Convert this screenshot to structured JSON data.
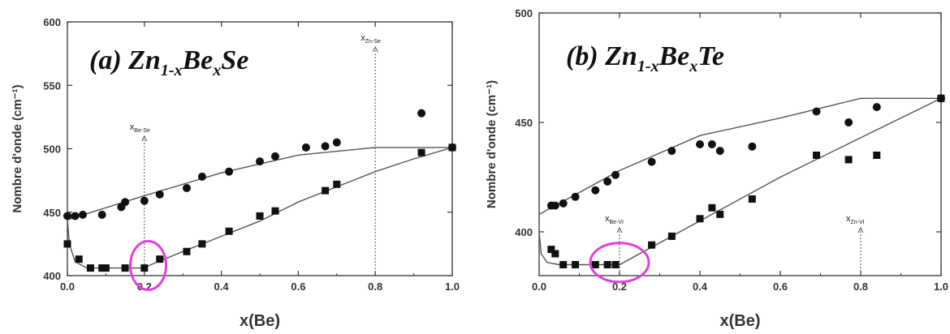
{
  "chart_data": [
    {
      "type": "scatter",
      "title": "(a) Zn",
      "title_sub1": "1-x",
      "title_mid": "Be",
      "title_sub2": "x",
      "title_end": "Se",
      "xlabel": "x(Be)",
      "ylabel": "Nombre d'onde (cm⁻¹)",
      "xlim": [
        0,
        1
      ],
      "ylim": [
        400,
        600
      ],
      "xticks": [
        "0.0",
        "0.2",
        "0.4",
        "0.6",
        "0.8",
        "1.0"
      ],
      "yticks": [
        "400",
        "450",
        "500",
        "550",
        "600"
      ],
      "series": [
        {
          "marker": "circle",
          "points": [
            [
              0.0,
              447
            ],
            [
              0.02,
              447
            ],
            [
              0.04,
              448
            ],
            [
              0.09,
              448
            ],
            [
              0.14,
              454
            ],
            [
              0.15,
              458
            ],
            [
              0.2,
              459
            ],
            [
              0.24,
              464
            ],
            [
              0.31,
              469
            ],
            [
              0.35,
              478
            ],
            [
              0.42,
              482
            ],
            [
              0.5,
              490
            ],
            [
              0.54,
              494
            ],
            [
              0.62,
              501
            ],
            [
              0.67,
              502
            ],
            [
              0.7,
              505
            ],
            [
              0.92,
              528
            ],
            [
              1.0,
              501
            ]
          ]
        },
        {
          "marker": "square",
          "points": [
            [
              0.0,
              425
            ],
            [
              0.03,
              413
            ],
            [
              0.06,
              406
            ],
            [
              0.09,
              406
            ],
            [
              0.1,
              406
            ],
            [
              0.15,
              406
            ],
            [
              0.2,
              406
            ],
            [
              0.24,
              413
            ],
            [
              0.31,
              419
            ],
            [
              0.35,
              425
            ],
            [
              0.42,
              435
            ],
            [
              0.5,
              447
            ],
            [
              0.54,
              451
            ],
            [
              0.67,
              467
            ],
            [
              0.7,
              472
            ],
            [
              0.92,
              497
            ],
            [
              1.0,
              501
            ]
          ]
        }
      ],
      "fit_lines": [
        [
          [
            0.0,
            444
          ],
          [
            0.2,
            463
          ],
          [
            0.4,
            481
          ],
          [
            0.6,
            495
          ],
          [
            0.8,
            501
          ],
          [
            1.0,
            501
          ]
        ],
        [
          [
            0.0,
            445
          ],
          [
            0.005,
            425
          ],
          [
            0.02,
            411
          ],
          [
            0.05,
            406
          ],
          [
            0.2,
            406
          ],
          [
            0.22,
            409
          ],
          [
            0.3,
            419
          ],
          [
            0.4,
            431
          ],
          [
            0.5,
            443
          ],
          [
            0.6,
            458
          ],
          [
            0.7,
            470
          ],
          [
            0.8,
            482
          ],
          [
            0.9,
            492
          ],
          [
            1.0,
            501
          ]
        ]
      ],
      "annotations": [
        {
          "label": "x",
          "sub": "Be-Se",
          "x": 0.2
        },
        {
          "label": "x",
          "sub": "Zn-Se",
          "x": 0.8
        }
      ],
      "highlight": {
        "x": 0.21,
        "y": 408,
        "color": "#e040e0"
      }
    },
    {
      "type": "scatter",
      "title": "(b) Zn",
      "title_sub1": "1-x",
      "title_mid": "Be",
      "title_sub2": "x",
      "title_end": "Te",
      "xlabel": "x(Be)",
      "ylabel": "Nombre d'onde (cm⁻¹)",
      "xlim": [
        0,
        1
      ],
      "ylim": [
        380,
        500
      ],
      "xticks": [
        "0.0",
        "0.2",
        "0.4",
        "0.6",
        "0.8",
        "1.0"
      ],
      "yticks": [
        "400",
        "450",
        "500"
      ],
      "series": [
        {
          "marker": "circle",
          "points": [
            [
              0.03,
              412
            ],
            [
              0.04,
              412
            ],
            [
              0.06,
              413
            ],
            [
              0.09,
              416
            ],
            [
              0.14,
              419
            ],
            [
              0.17,
              423
            ],
            [
              0.19,
              426
            ],
            [
              0.28,
              432
            ],
            [
              0.33,
              437
            ],
            [
              0.4,
              440
            ],
            [
              0.43,
              440
            ],
            [
              0.45,
              437
            ],
            [
              0.53,
              439
            ],
            [
              0.69,
              455
            ],
            [
              0.77,
              450
            ],
            [
              0.84,
              457
            ],
            [
              1.0,
              461
            ]
          ]
        },
        {
          "marker": "square",
          "points": [
            [
              0.03,
              392
            ],
            [
              0.04,
              390
            ],
            [
              0.06,
              385
            ],
            [
              0.09,
              385
            ],
            [
              0.14,
              385
            ],
            [
              0.17,
              385
            ],
            [
              0.19,
              385
            ],
            [
              0.28,
              394
            ],
            [
              0.33,
              398
            ],
            [
              0.4,
              406
            ],
            [
              0.43,
              411
            ],
            [
              0.45,
              408
            ],
            [
              0.53,
              415
            ],
            [
              0.69,
              435
            ],
            [
              0.77,
              433
            ],
            [
              0.84,
              435
            ],
            [
              1.0,
              461
            ]
          ]
        }
      ],
      "fit_lines": [
        [
          [
            0.0,
            408
          ],
          [
            0.2,
            428
          ],
          [
            0.4,
            444
          ],
          [
            0.6,
            452
          ],
          [
            0.8,
            461
          ],
          [
            1.0,
            461
          ]
        ],
        [
          [
            0.0,
            400
          ],
          [
            0.005,
            390
          ],
          [
            0.02,
            386
          ],
          [
            0.05,
            385
          ],
          [
            0.2,
            385
          ],
          [
            0.4,
            405
          ],
          [
            0.6,
            425
          ],
          [
            0.8,
            443
          ],
          [
            1.0,
            461
          ]
        ]
      ],
      "annotations": [
        {
          "label": "x",
          "sub": "Be-VI",
          "x": 0.2
        },
        {
          "label": "x",
          "sub": "Zn-VI",
          "x": 0.8
        }
      ],
      "highlight": {
        "x": 0.2,
        "y": 386,
        "color": "#e040e0"
      }
    }
  ]
}
